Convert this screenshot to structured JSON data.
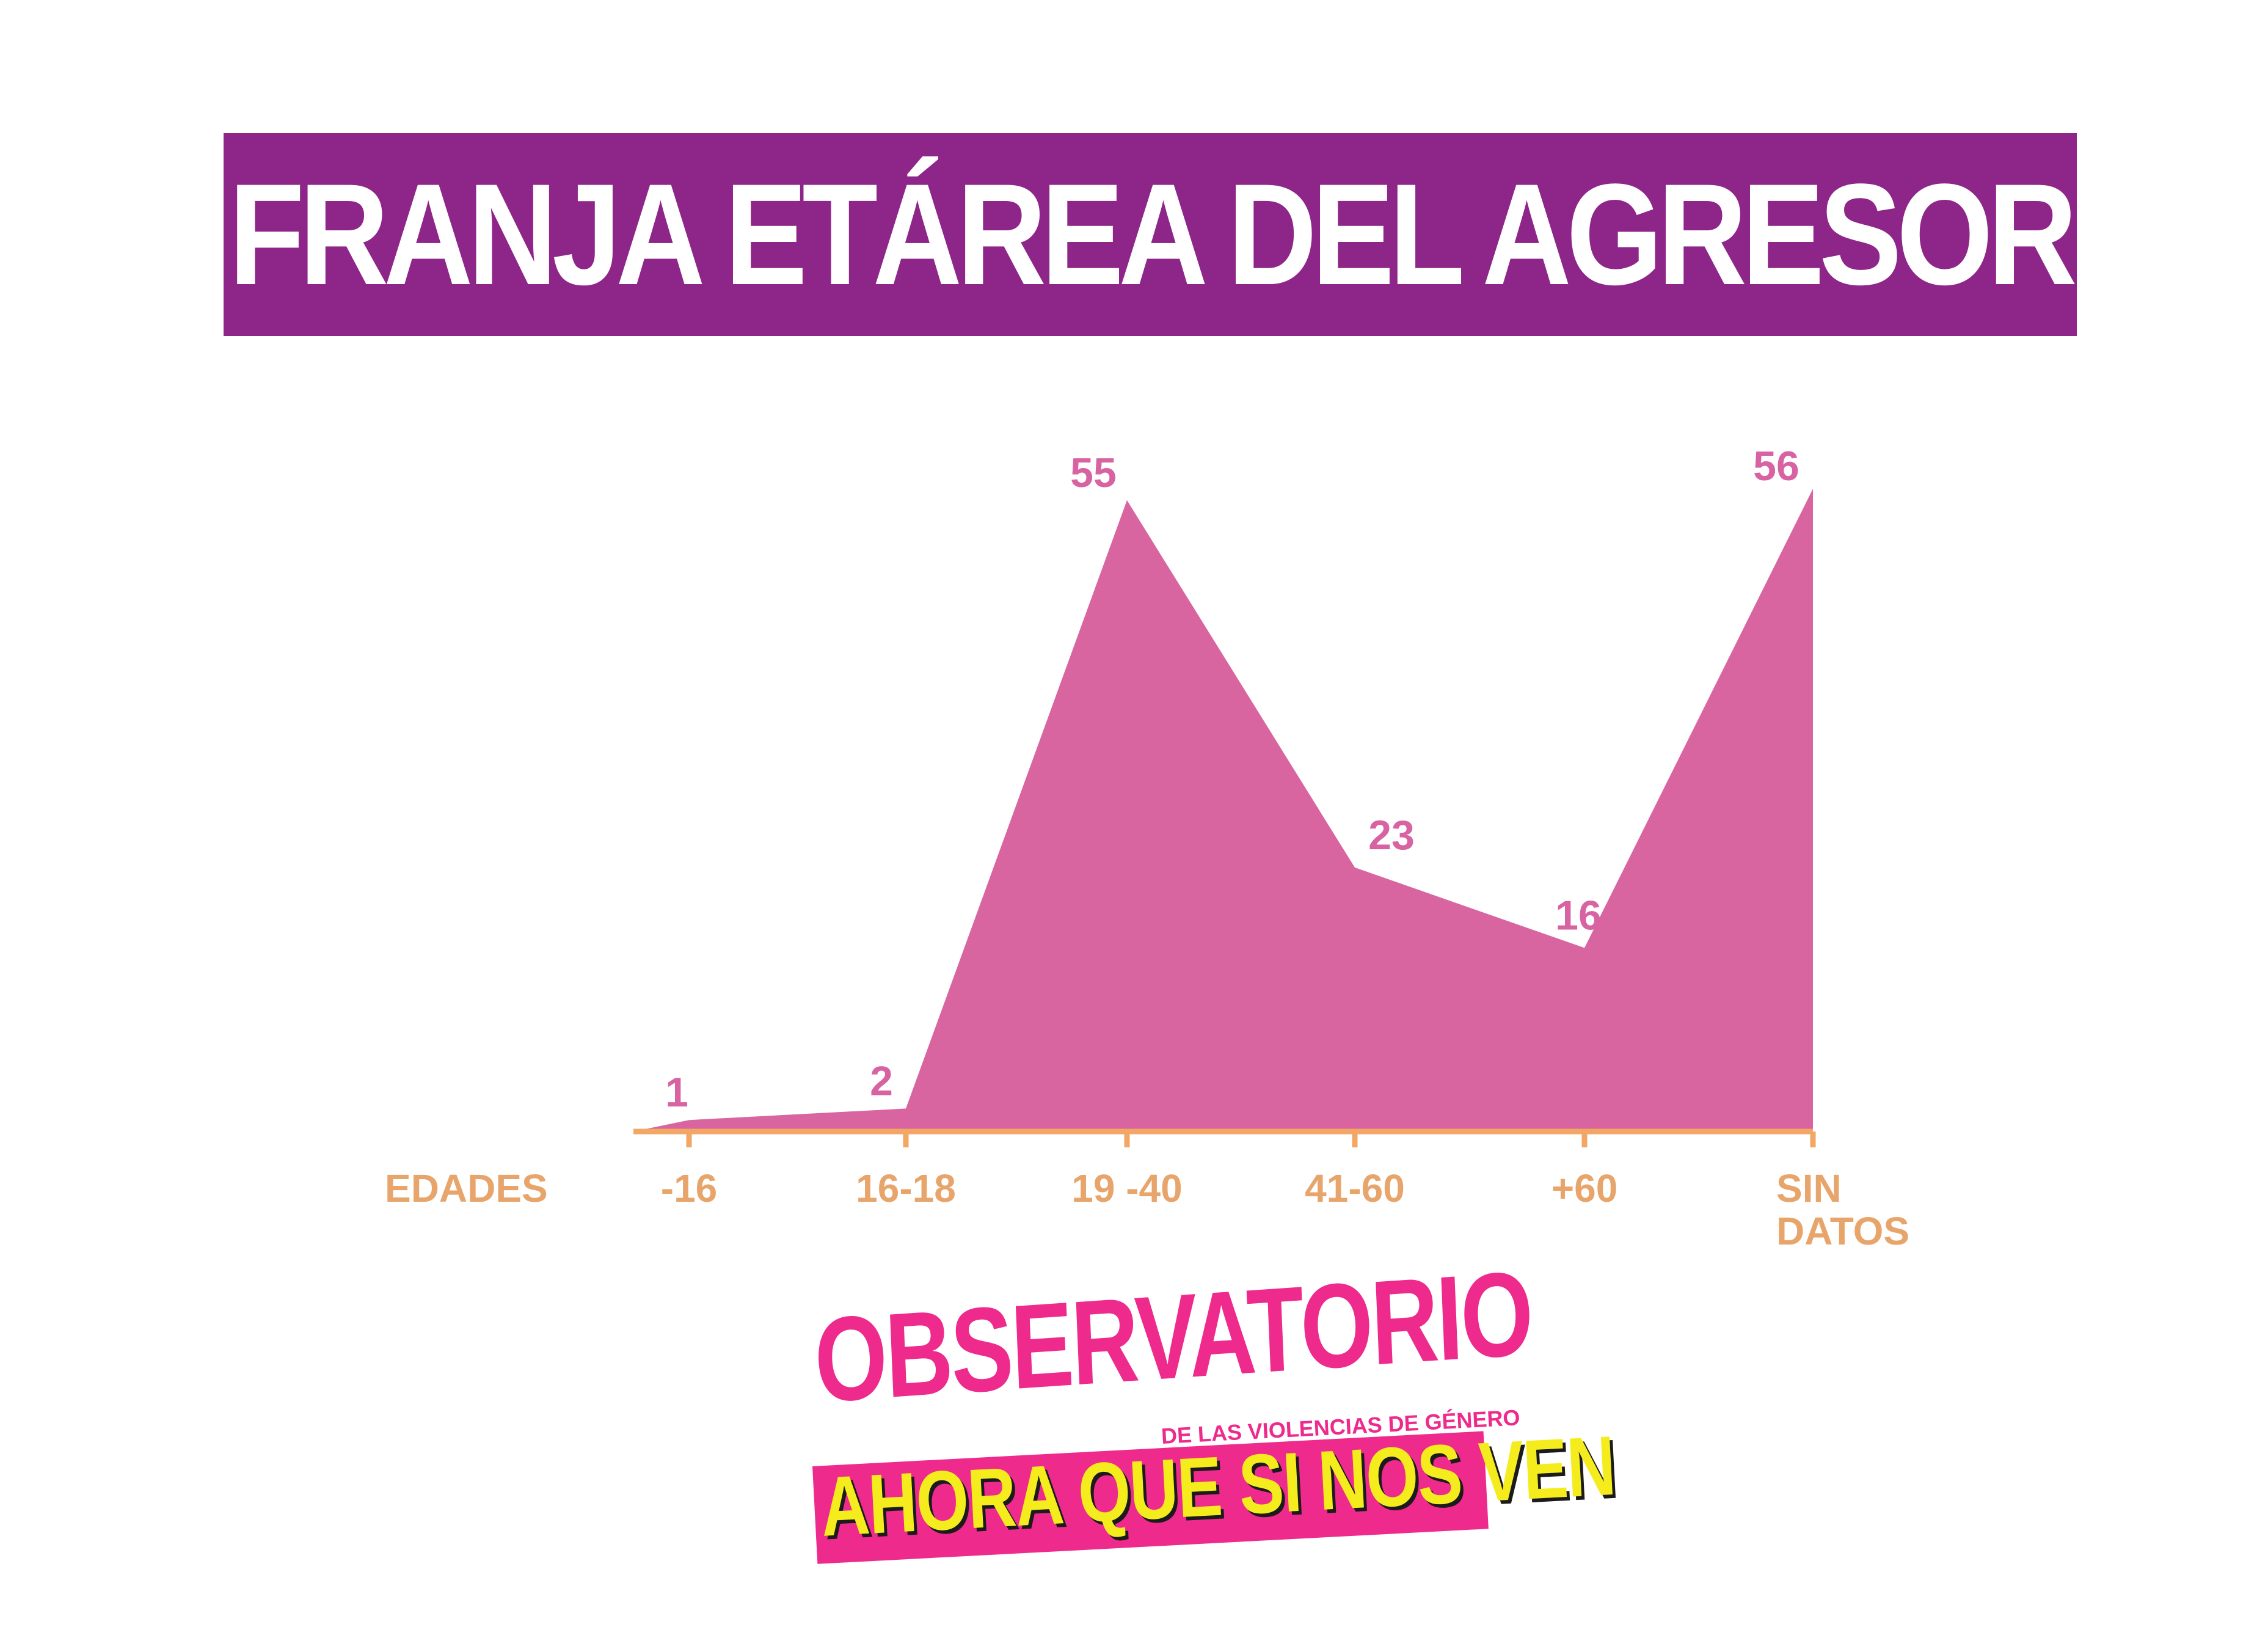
{
  "title": "FRANJA ETÁREA DEL AGRESOR",
  "chart_data": {
    "type": "area",
    "categories": [
      "-16",
      "16-18",
      "19 -40",
      "41-60",
      "+60",
      "SIN DATOS"
    ],
    "values": [
      1,
      2,
      55,
      23,
      16,
      56
    ],
    "xlabel": "EDADES",
    "ylabel": "",
    "ylim": [
      0,
      56
    ],
    "grid": false,
    "legend": "none",
    "colors": {
      "area": "#d865a0",
      "axis": "#f2a765",
      "labels": "#e8a56b",
      "data_labels": "#d863a2"
    }
  },
  "logo": {
    "main": "OBSERVATORIO",
    "subtitle": "DE LAS VIOLENCIAS DE GÉNERO",
    "slogan": "AHORA QUE SI NOS VEN",
    "colors": {
      "pink": "#ee2a8d",
      "yellow": "#f5ec1e"
    }
  },
  "colors": {
    "banner": "#8e2689",
    "background": "#ffffff"
  }
}
